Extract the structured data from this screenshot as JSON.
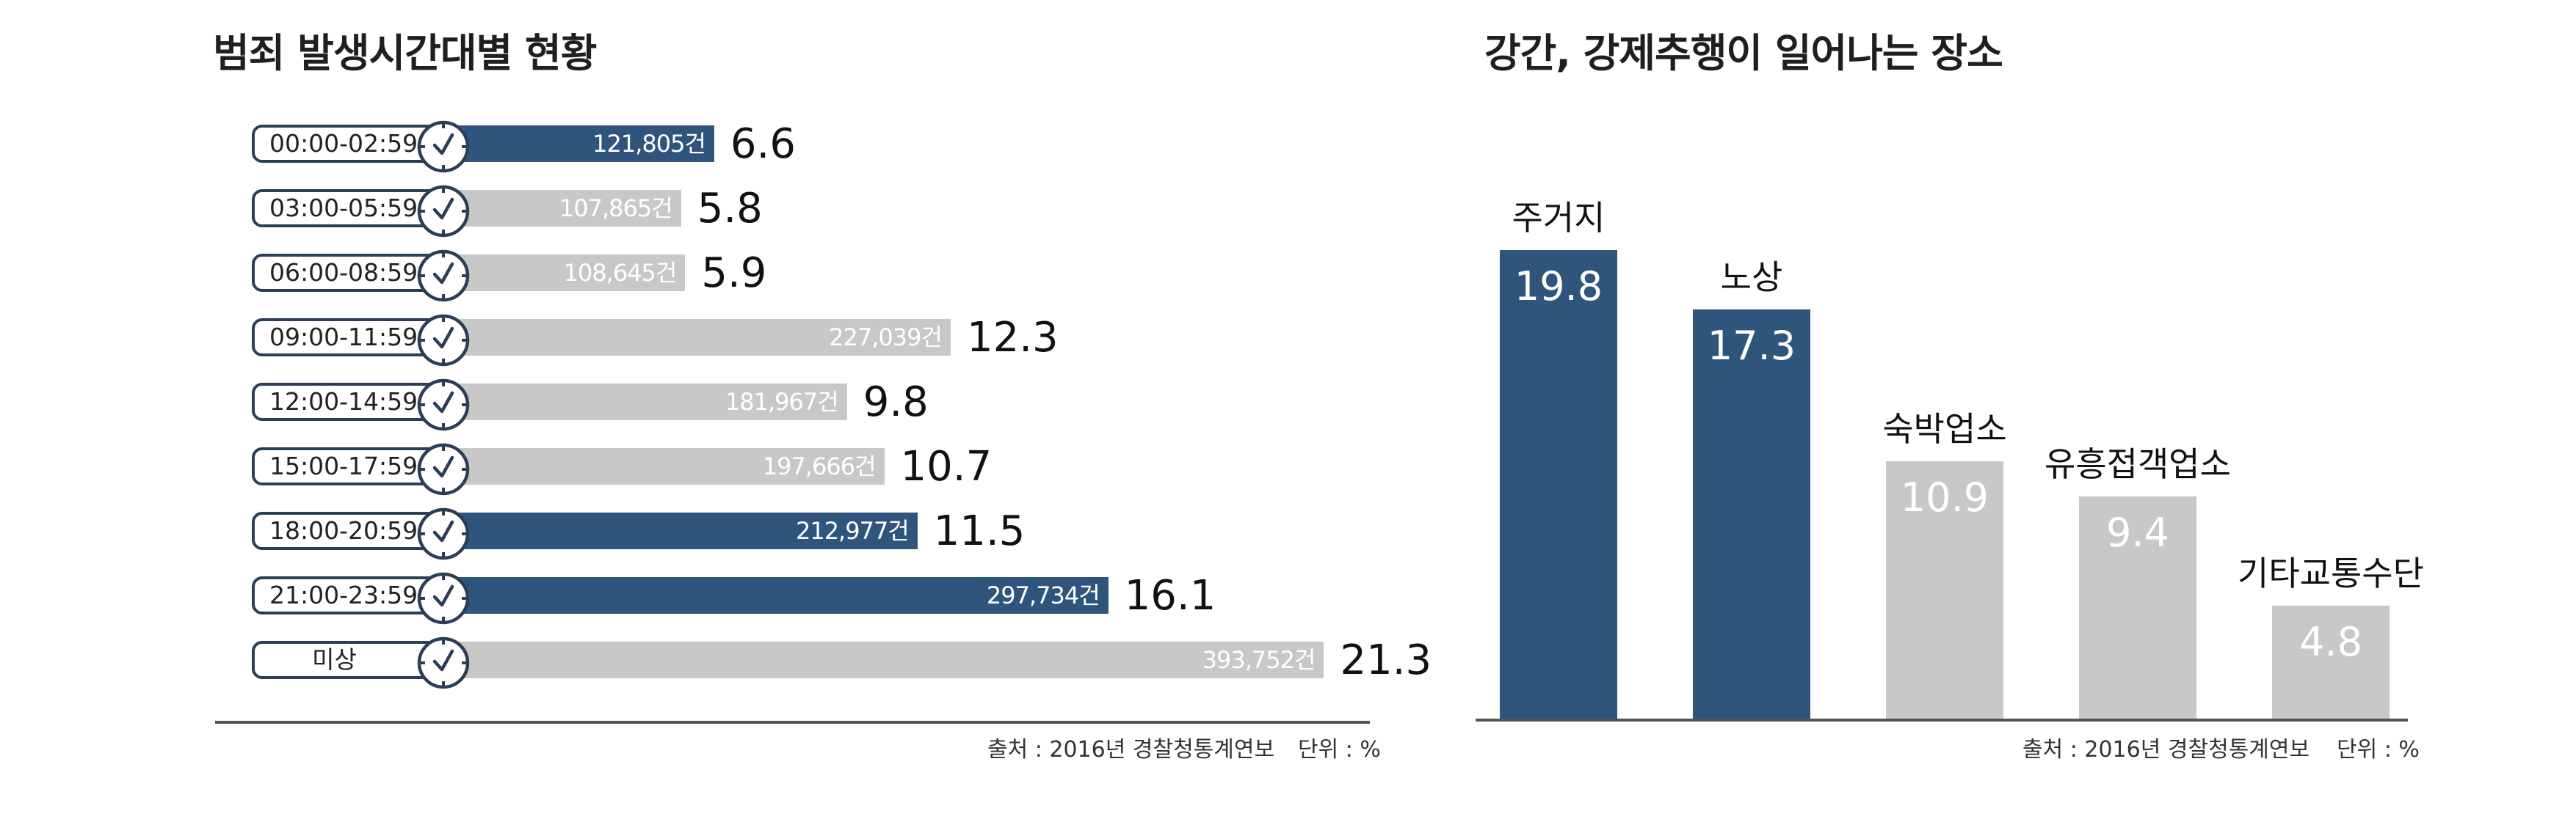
{
  "left_panel": {
    "title": "범죄 발생시간대별 현황",
    "source": "출처 : 2016년 경찰청통계연보",
    "unit": "단위 : %"
  },
  "right_panel": {
    "title": "강간, 강제추행이 일어나는 장소",
    "source": "출처 : 2016년 경찰청통계연보",
    "unit": "단위 : %"
  },
  "colors": {
    "highlight": "#2f557d",
    "normal": "#c8c8c8"
  },
  "chart_data": [
    {
      "type": "bar",
      "orientation": "horizontal",
      "title": "범죄 발생시간대별 현황",
      "categories": [
        "00:00-02:59",
        "03:00-05:59",
        "06:00-08:59",
        "09:00-11:59",
        "12:00-14:59",
        "15:00-17:59",
        "18:00-20:59",
        "21:00-23:59",
        "미상"
      ],
      "values": [
        6.6,
        5.8,
        5.9,
        12.3,
        9.8,
        10.7,
        11.5,
        16.1,
        21.3
      ],
      "counts": [
        "121,805건",
        "107,865건",
        "108,645건",
        "227,039건",
        "181,967건",
        "197,666건",
        "212,977건",
        "297,734건",
        "393,752건"
      ],
      "highlighted": [
        true,
        false,
        false,
        false,
        false,
        false,
        true,
        true,
        false
      ],
      "icon": "clock-icon",
      "unit": "%"
    },
    {
      "type": "bar",
      "orientation": "vertical",
      "title": "강간, 강제추행이 일어나는 장소",
      "categories": [
        "주거지",
        "노상",
        "숙박업소",
        "유흥접객업소",
        "기타교통수단"
      ],
      "values": [
        19.8,
        17.3,
        10.9,
        9.4,
        4.8
      ],
      "highlighted": [
        true,
        true,
        false,
        false,
        false
      ],
      "unit": "%"
    }
  ]
}
